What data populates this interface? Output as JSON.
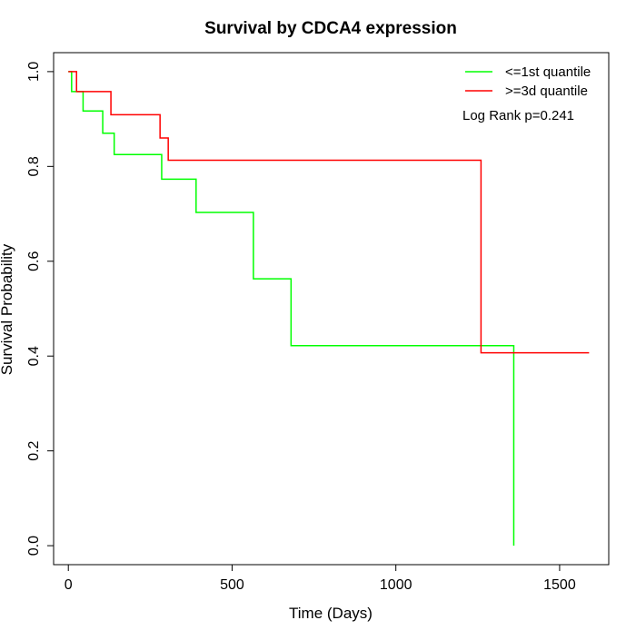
{
  "chart_data": {
    "type": "line",
    "step": true,
    "title": "Survival by CDCA4 expression",
    "xlabel": "Time (Days)",
    "ylabel": "Survival Probability",
    "xlim": [
      -45,
      1650
    ],
    "ylim": [
      -0.04,
      1.04
    ],
    "xticks": [
      0,
      500,
      1000,
      1500
    ],
    "yticks": [
      0.0,
      0.2,
      0.4,
      0.6,
      0.8,
      1.0
    ],
    "xtick_labels": [
      "0",
      "500",
      "1000",
      "1500"
    ],
    "ytick_labels": [
      "0.0",
      "0.2",
      "0.4",
      "0.6",
      "0.8",
      "1.0"
    ],
    "grid": false,
    "legend_position": "top-right",
    "annotation": "Log Rank p=0.241",
    "series": [
      {
        "name": "<=1st quantile",
        "color": "#00ff00",
        "x": [
          0,
          10,
          45,
          105,
          140,
          285,
          390,
          565,
          680,
          1360,
          1360
        ],
        "y": [
          1.0,
          0.958,
          0.917,
          0.87,
          0.825,
          0.773,
          0.703,
          0.563,
          0.422,
          0.422,
          0.0
        ]
      },
      {
        "name": ">=3d quantile",
        "color": "#ff0000",
        "x": [
          0,
          25,
          130,
          280,
          305,
          1260,
          1590
        ],
        "y": [
          1.0,
          0.958,
          0.909,
          0.86,
          0.813,
          0.407,
          0.407
        ]
      }
    ]
  }
}
